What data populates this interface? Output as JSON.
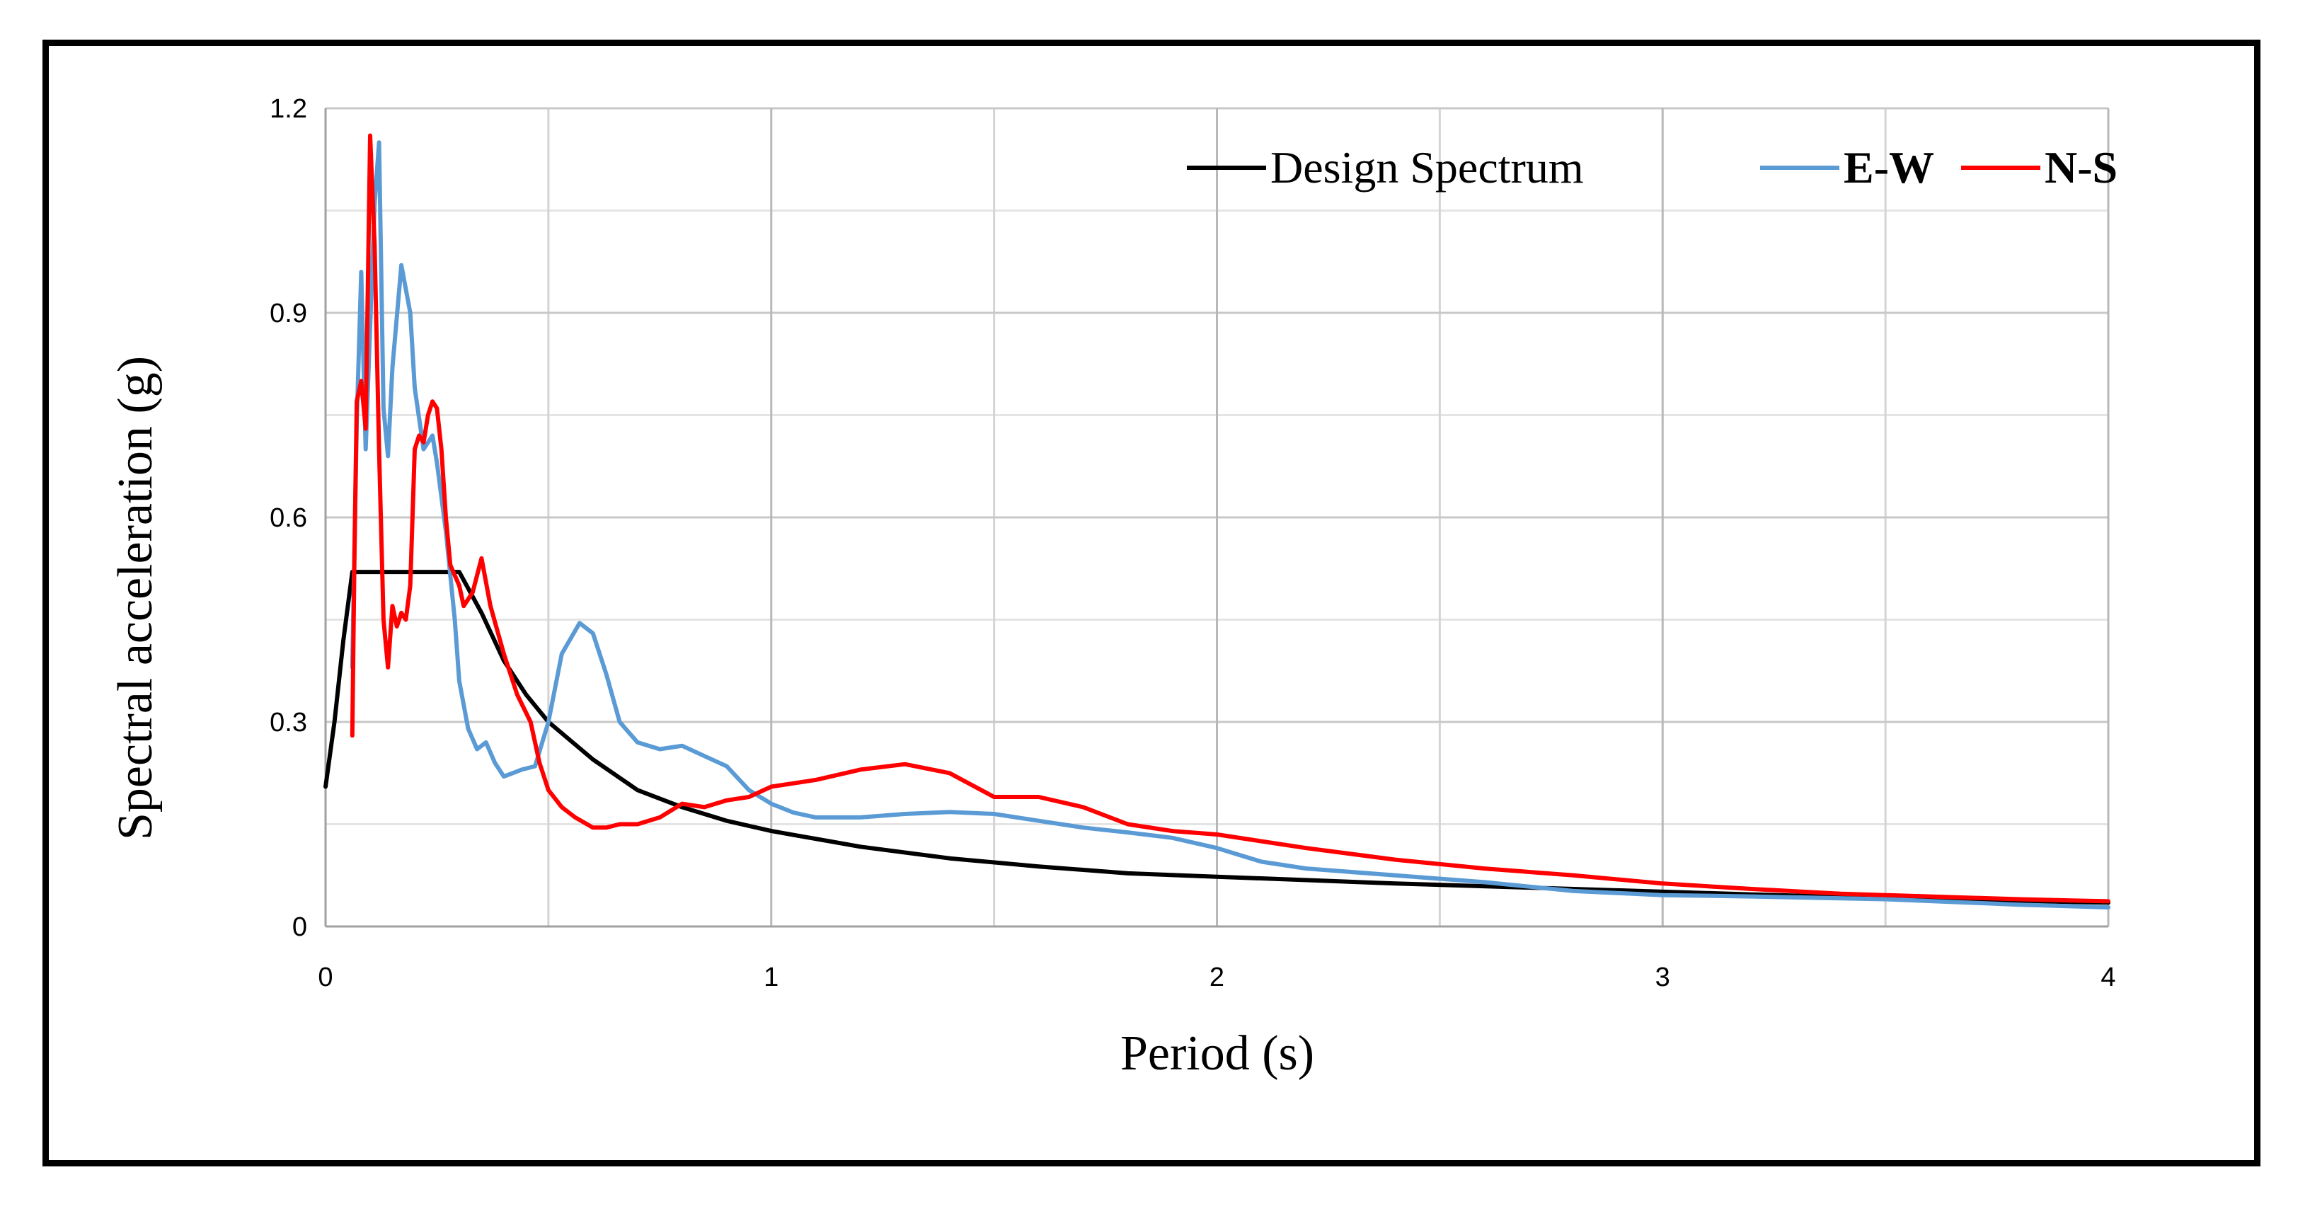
{
  "chart_data": {
    "type": "line",
    "title": "",
    "xlabel": "Period (s)",
    "ylabel": "Spectral acceleration (g)",
    "xlim": [
      0,
      4
    ],
    "ylim": [
      0,
      1.2
    ],
    "x_ticks": [
      0,
      1,
      2,
      3,
      4
    ],
    "x_tick_labels": [
      "0",
      "1",
      "2",
      "3",
      "4"
    ],
    "x_minor_gridlines": [
      0.5,
      1.5,
      2.5,
      3.5
    ],
    "y_ticks": [
      0,
      0.3,
      0.6,
      0.9,
      1.2
    ],
    "y_tick_labels": [
      "0",
      "0.3",
      "0.6",
      "0.9",
      "1.2"
    ],
    "y_minor_gridlines": [
      0.15,
      0.45,
      0.75,
      1.05
    ],
    "grid": true,
    "legend_position": "top-right",
    "series": [
      {
        "name": "Design Spectrum",
        "color": "#000000",
        "legend_bold": false,
        "points": [
          [
            0,
            0.205
          ],
          [
            0.02,
            0.3
          ],
          [
            0.04,
            0.42
          ],
          [
            0.06,
            0.52
          ],
          [
            0.1,
            0.52
          ],
          [
            0.2,
            0.52
          ],
          [
            0.3,
            0.52
          ],
          [
            0.35,
            0.46
          ],
          [
            0.4,
            0.39
          ],
          [
            0.45,
            0.34
          ],
          [
            0.5,
            0.3
          ],
          [
            0.6,
            0.245
          ],
          [
            0.7,
            0.2
          ],
          [
            0.8,
            0.175
          ],
          [
            0.9,
            0.155
          ],
          [
            1.0,
            0.14
          ],
          [
            1.2,
            0.117
          ],
          [
            1.4,
            0.1
          ],
          [
            1.6,
            0.088
          ],
          [
            1.8,
            0.078
          ],
          [
            2.0,
            0.073
          ],
          [
            2.4,
            0.063
          ],
          [
            2.8,
            0.055
          ],
          [
            3.2,
            0.047
          ],
          [
            3.6,
            0.04
          ],
          [
            4.0,
            0.035
          ]
        ]
      },
      {
        "name": "E-W",
        "color": "#5B9BD5",
        "legend_bold": true,
        "points": [
          [
            0.06,
            0.38
          ],
          [
            0.07,
            0.74
          ],
          [
            0.08,
            0.96
          ],
          [
            0.09,
            0.7
          ],
          [
            0.1,
            0.88
          ],
          [
            0.11,
            1.06
          ],
          [
            0.12,
            1.15
          ],
          [
            0.13,
            0.76
          ],
          [
            0.14,
            0.69
          ],
          [
            0.15,
            0.82
          ],
          [
            0.17,
            0.97
          ],
          [
            0.19,
            0.9
          ],
          [
            0.2,
            0.79
          ],
          [
            0.22,
            0.7
          ],
          [
            0.24,
            0.72
          ],
          [
            0.25,
            0.68
          ],
          [
            0.27,
            0.58
          ],
          [
            0.29,
            0.45
          ],
          [
            0.3,
            0.36
          ],
          [
            0.32,
            0.29
          ],
          [
            0.34,
            0.26
          ],
          [
            0.36,
            0.27
          ],
          [
            0.38,
            0.24
          ],
          [
            0.4,
            0.22
          ],
          [
            0.42,
            0.225
          ],
          [
            0.44,
            0.23
          ],
          [
            0.47,
            0.235
          ],
          [
            0.5,
            0.3
          ],
          [
            0.53,
            0.4
          ],
          [
            0.57,
            0.445
          ],
          [
            0.6,
            0.43
          ],
          [
            0.63,
            0.37
          ],
          [
            0.66,
            0.3
          ],
          [
            0.7,
            0.27
          ],
          [
            0.75,
            0.26
          ],
          [
            0.8,
            0.265
          ],
          [
            0.85,
            0.25
          ],
          [
            0.9,
            0.235
          ],
          [
            0.95,
            0.2
          ],
          [
            1.0,
            0.18
          ],
          [
            1.05,
            0.167
          ],
          [
            1.1,
            0.16
          ],
          [
            1.2,
            0.16
          ],
          [
            1.3,
            0.165
          ],
          [
            1.4,
            0.168
          ],
          [
            1.5,
            0.165
          ],
          [
            1.6,
            0.155
          ],
          [
            1.7,
            0.145
          ],
          [
            1.8,
            0.138
          ],
          [
            1.9,
            0.13
          ],
          [
            2.0,
            0.115
          ],
          [
            2.1,
            0.095
          ],
          [
            2.2,
            0.085
          ],
          [
            2.4,
            0.075
          ],
          [
            2.6,
            0.065
          ],
          [
            2.8,
            0.052
          ],
          [
            3.0,
            0.046
          ],
          [
            3.2,
            0.044
          ],
          [
            3.5,
            0.04
          ],
          [
            3.8,
            0.032
          ],
          [
            4.0,
            0.028
          ]
        ]
      },
      {
        "name": "N-S",
        "color": "#FF0000",
        "legend_bold": true,
        "points": [
          [
            0.06,
            0.28
          ],
          [
            0.065,
            0.55
          ],
          [
            0.07,
            0.77
          ],
          [
            0.08,
            0.8
          ],
          [
            0.09,
            0.73
          ],
          [
            0.1,
            1.16
          ],
          [
            0.11,
            1.0
          ],
          [
            0.12,
            0.7
          ],
          [
            0.13,
            0.45
          ],
          [
            0.14,
            0.38
          ],
          [
            0.15,
            0.47
          ],
          [
            0.16,
            0.44
          ],
          [
            0.17,
            0.46
          ],
          [
            0.18,
            0.45
          ],
          [
            0.19,
            0.5
          ],
          [
            0.2,
            0.7
          ],
          [
            0.21,
            0.72
          ],
          [
            0.22,
            0.71
          ],
          [
            0.23,
            0.75
          ],
          [
            0.24,
            0.77
          ],
          [
            0.25,
            0.76
          ],
          [
            0.26,
            0.7
          ],
          [
            0.27,
            0.6
          ],
          [
            0.28,
            0.53
          ],
          [
            0.3,
            0.5
          ],
          [
            0.31,
            0.47
          ],
          [
            0.33,
            0.49
          ],
          [
            0.35,
            0.54
          ],
          [
            0.37,
            0.47
          ],
          [
            0.4,
            0.4
          ],
          [
            0.43,
            0.34
          ],
          [
            0.46,
            0.3
          ],
          [
            0.48,
            0.24
          ],
          [
            0.5,
            0.2
          ],
          [
            0.53,
            0.175
          ],
          [
            0.56,
            0.16
          ],
          [
            0.6,
            0.145
          ],
          [
            0.63,
            0.145
          ],
          [
            0.66,
            0.15
          ],
          [
            0.7,
            0.15
          ],
          [
            0.75,
            0.16
          ],
          [
            0.8,
            0.18
          ],
          [
            0.85,
            0.175
          ],
          [
            0.9,
            0.185
          ],
          [
            0.95,
            0.19
          ],
          [
            1.0,
            0.205
          ],
          [
            1.1,
            0.215
          ],
          [
            1.2,
            0.23
          ],
          [
            1.3,
            0.238
          ],
          [
            1.4,
            0.225
          ],
          [
            1.5,
            0.19
          ],
          [
            1.6,
            0.19
          ],
          [
            1.7,
            0.175
          ],
          [
            1.8,
            0.15
          ],
          [
            1.9,
            0.14
          ],
          [
            2.0,
            0.135
          ],
          [
            2.2,
            0.115
          ],
          [
            2.4,
            0.098
          ],
          [
            2.6,
            0.085
          ],
          [
            2.8,
            0.075
          ],
          [
            3.0,
            0.063
          ],
          [
            3.2,
            0.055
          ],
          [
            3.4,
            0.048
          ],
          [
            3.6,
            0.044
          ],
          [
            3.8,
            0.04
          ],
          [
            4.0,
            0.037
          ]
        ]
      }
    ]
  }
}
